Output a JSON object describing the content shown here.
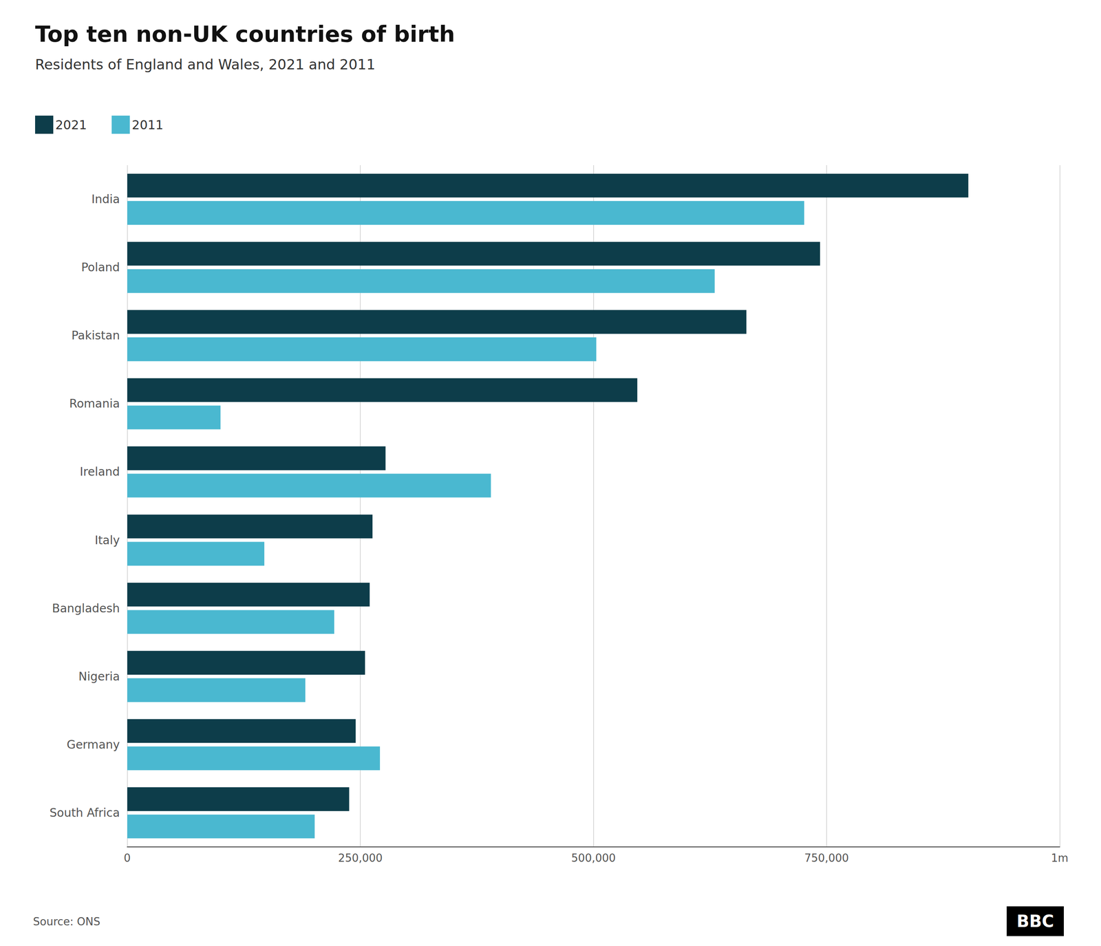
{
  "chart_data": {
    "type": "bar",
    "orientation": "horizontal",
    "title": "Top ten non-UK countries of birth",
    "subtitle": "Residents of England and Wales, 2021 and 2011",
    "annotations": [
      "Source: ONS",
      "BBC"
    ],
    "categories": [
      "India",
      "Poland",
      "Pakistan",
      "Romania",
      "Ireland",
      "Italy",
      "Bangladesh",
      "Nigeria",
      "Germany",
      "South Africa"
    ],
    "series": [
      {
        "name": "2021",
        "color": "#0d3d4a",
        "values": [
          902000,
          743000,
          664000,
          547000,
          277000,
          263000,
          260000,
          255000,
          245000,
          238000
        ]
      },
      {
        "name": "2011",
        "color": "#4ab8d0",
        "values": [
          726000,
          630000,
          503000,
          100000,
          390000,
          147000,
          222000,
          191000,
          271000,
          201000
        ]
      }
    ],
    "xlim": [
      0,
      1000000
    ],
    "xticks": [
      0,
      {
        "value": 250000,
        "label": "250,000"
      },
      {
        "value": 500000,
        "label": "500,000"
      },
      {
        "value": 750000,
        "label": "750,000"
      },
      {
        "value": 1000000,
        "label": "1m"
      }
    ],
    "grid": true,
    "legend": "upper left"
  }
}
